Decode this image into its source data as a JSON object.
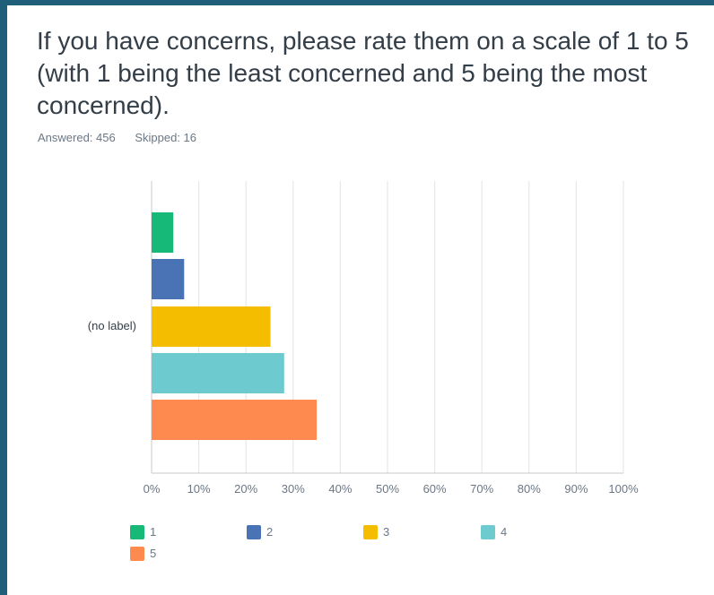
{
  "question": {
    "title": "If you have concerns, please rate them on a scale of 1 to 5 (with 1 being the least concerned and 5 being the most concerned)."
  },
  "stats": {
    "answered": "Answered: 456",
    "skipped": "Skipped: 16"
  },
  "colors": {
    "frame": "#1f5f7a",
    "grid": "#e3e3e3",
    "axis": "#c8c8c8",
    "text": "#333e48",
    "muted": "#6b7785"
  },
  "chart_data": {
    "type": "bar",
    "orientation": "horizontal",
    "categories": [
      "(no label)"
    ],
    "series": [
      {
        "name": "1",
        "values": [
          4.6
        ],
        "color": "#17b978"
      },
      {
        "name": "2",
        "values": [
          6.9
        ],
        "color": "#4a73b5"
      },
      {
        "name": "3",
        "values": [
          25.2
        ],
        "color": "#f5bd00"
      },
      {
        "name": "4",
        "values": [
          28.1
        ],
        "color": "#6dcbd0"
      },
      {
        "name": "5",
        "values": [
          35.0
        ],
        "color": "#ff8a4f"
      }
    ],
    "xlim": [
      0,
      100
    ],
    "xticks": [
      "0%",
      "10%",
      "20%",
      "30%",
      "40%",
      "50%",
      "60%",
      "70%",
      "80%",
      "90%",
      "100%"
    ],
    "grid": true,
    "legend_position": "bottom-left"
  }
}
